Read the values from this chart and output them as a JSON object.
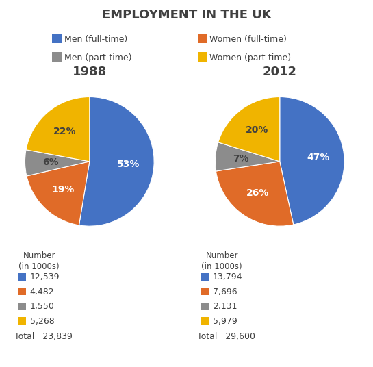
{
  "title": "EMPLOYMENT IN THE UK",
  "title_fontsize": 13,
  "legend_labels": [
    "Men (full-time)",
    "Women (full-time)",
    "Men (part-time)",
    "Women (part-time)"
  ],
  "colors": [
    "#4472C4",
    "#E06B28",
    "#8C8C8C",
    "#F0B400"
  ],
  "chart1_year": "1988",
  "chart1_values": [
    12539,
    4482,
    1550,
    5268
  ],
  "chart1_pct_labels": [
    "53%",
    "19%",
    "6%",
    "22%"
  ],
  "chart1_pct_colors": [
    "white",
    "white",
    "#404040",
    "#404040"
  ],
  "chart1_total": "23,839",
  "chart1_numbers": [
    "12,539",
    "4,482",
    "1,550",
    "5,268"
  ],
  "chart2_year": "2012",
  "chart2_values": [
    13794,
    7696,
    2131,
    5979
  ],
  "chart2_pct_labels": [
    "47%",
    "26%",
    "7%",
    "20%"
  ],
  "chart2_pct_colors": [
    "white",
    "white",
    "#404040",
    "#404040"
  ],
  "chart2_total": "29,600",
  "chart2_numbers": [
    "13,794",
    "7,696",
    "2,131",
    "5,979"
  ],
  "number_label": "Number\n(in 1000s)",
  "total_label": "Total",
  "text_color": "#404040",
  "bg_color": "#FFFFFF"
}
